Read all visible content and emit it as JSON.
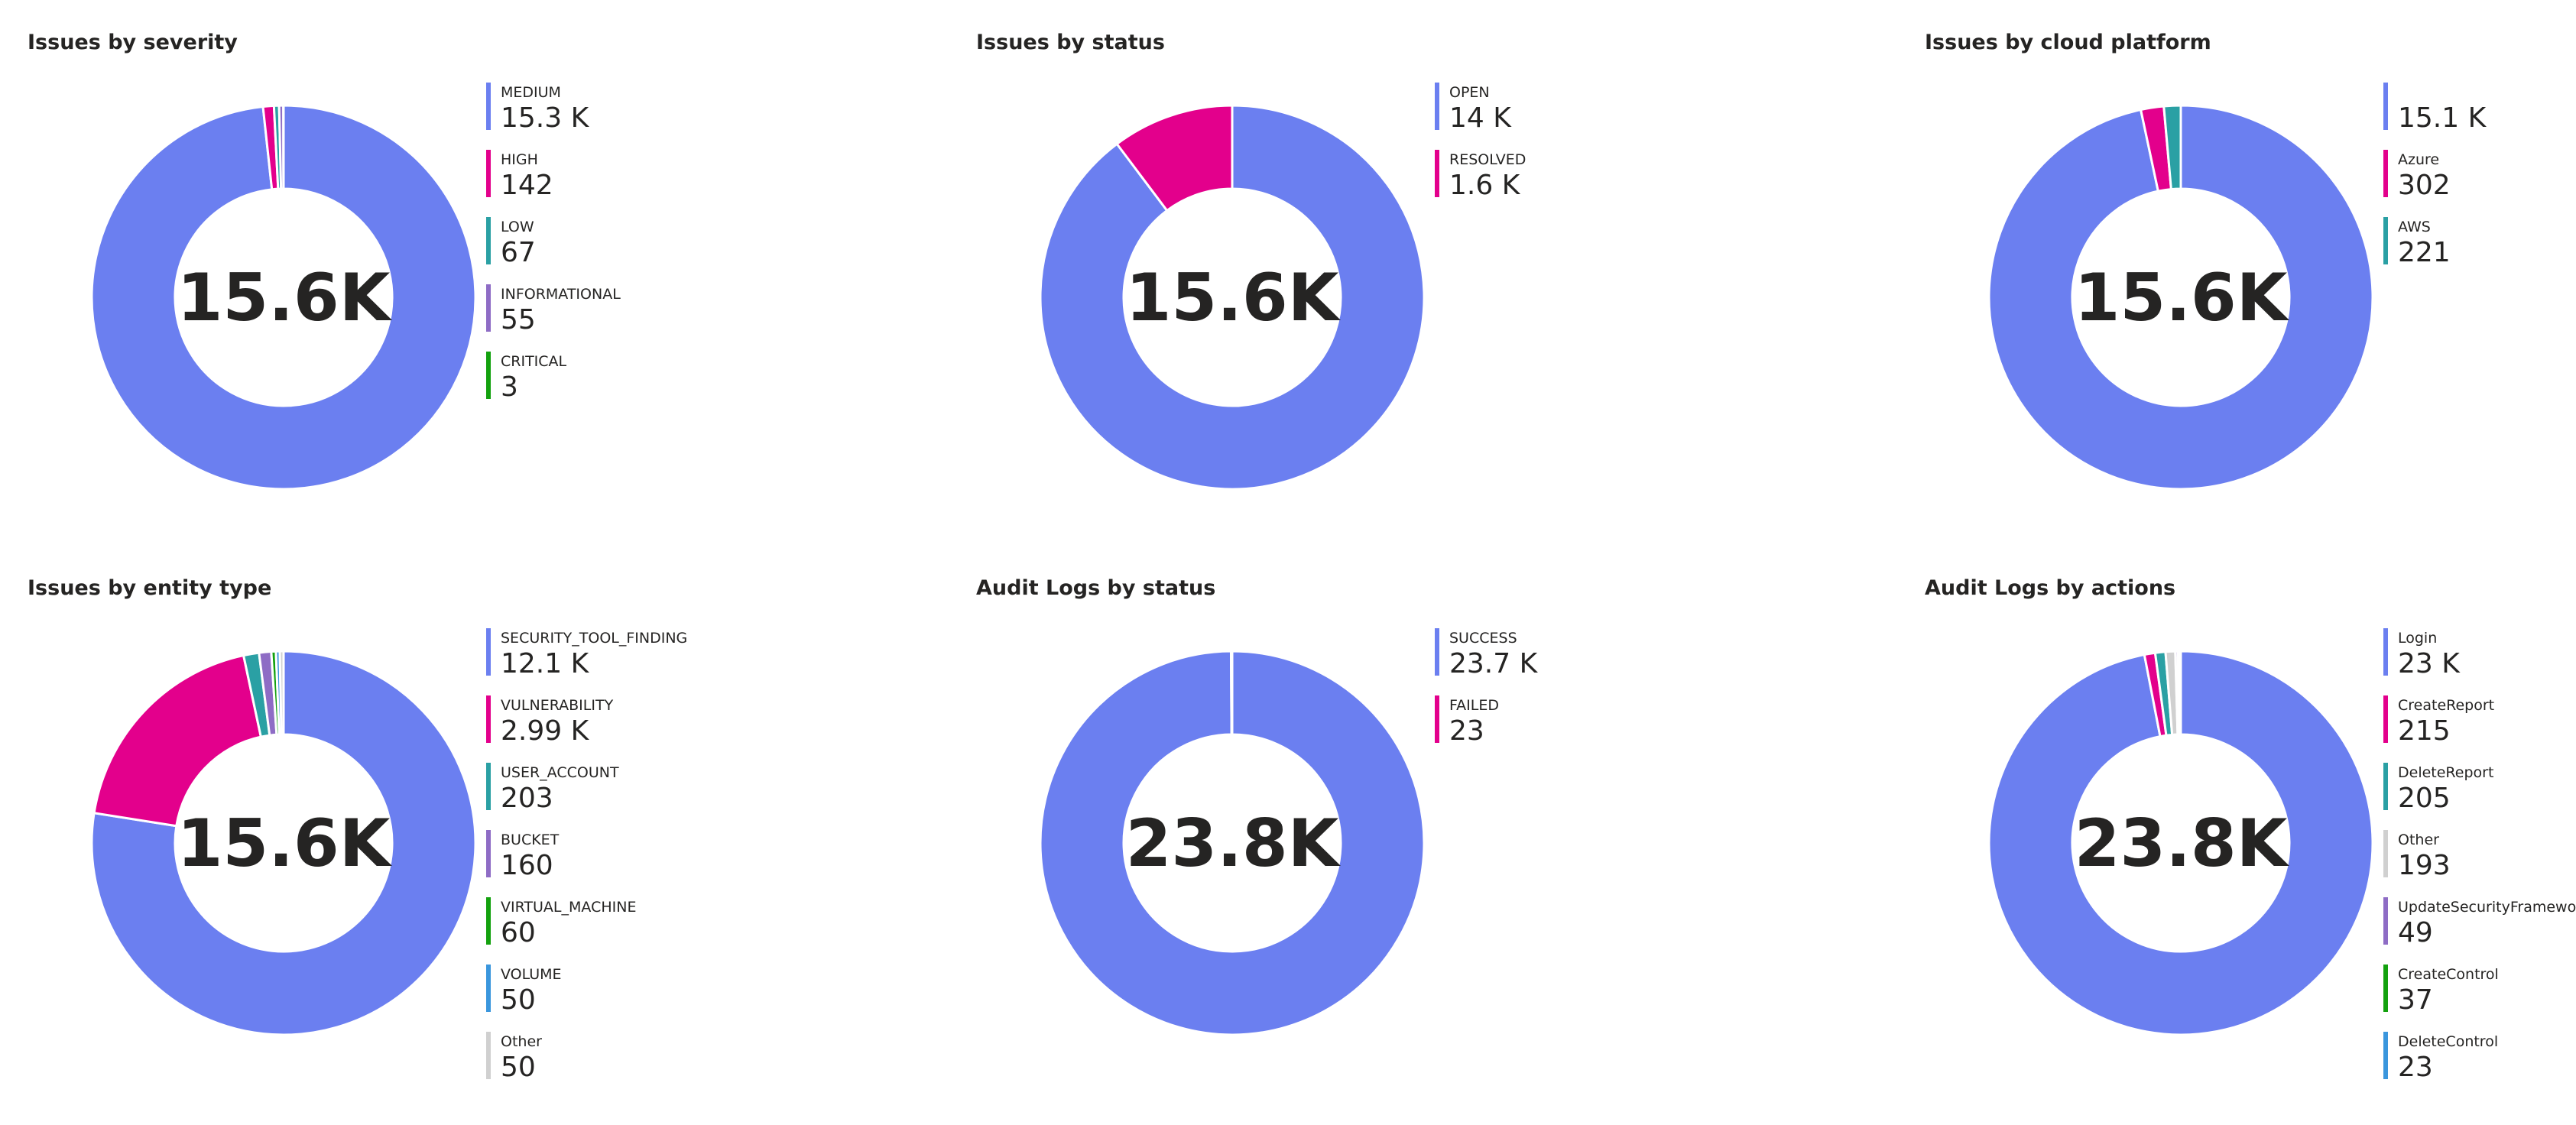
{
  "chart_data": [
    {
      "type": "donut",
      "title": "Issues by severity",
      "center_label": "15.6K",
      "categories": [
        "MEDIUM",
        "HIGH",
        "LOW",
        "INFORMATIONAL",
        "CRITICAL"
      ],
      "values": [
        15300,
        142,
        67,
        55,
        3
      ],
      "value_labels": [
        "15.3 K",
        "142",
        "67",
        "55",
        "3"
      ],
      "colors": [
        "#6b7ff0",
        "#e3008c",
        "#2aa0a4",
        "#8e6cc5",
        "#13a10e"
      ]
    },
    {
      "type": "donut",
      "title": "Issues by status",
      "center_label": "15.6K",
      "categories": [
        "OPEN",
        "RESOLVED"
      ],
      "values": [
        14000,
        1600
      ],
      "value_labels": [
        "14 K",
        "1.6 K"
      ],
      "colors": [
        "#6b7ff0",
        "#e3008c"
      ]
    },
    {
      "type": "donut",
      "title": "Issues by cloud platform",
      "center_label": "15.6K",
      "categories": [
        null,
        "Azure",
        "AWS"
      ],
      "values": [
        15100,
        302,
        221
      ],
      "value_labels": [
        "15.1 K",
        "302",
        "221"
      ],
      "colors": [
        "#6b7ff0",
        "#e3008c",
        "#2aa0a4"
      ]
    },
    {
      "type": "donut",
      "title": "Issues by entity type",
      "center_label": "15.6K",
      "categories": [
        "SECURITY_TOOL_FINDING",
        "VULNERABILITY",
        "USER_ACCOUNT",
        "BUCKET",
        "VIRTUAL_MACHINE",
        "VOLUME",
        "Other"
      ],
      "values": [
        12100,
        2990,
        203,
        160,
        60,
        50,
        50
      ],
      "value_labels": [
        "12.1 K",
        "2.99 K",
        "203",
        "160",
        "60",
        "50",
        "50"
      ],
      "colors": [
        "#6b7ff0",
        "#e3008c",
        "#2aa0a4",
        "#8e6cc5",
        "#13a10e",
        "#3a96dd",
        "#d0d0d0"
      ]
    },
    {
      "type": "donut",
      "title": "Audit Logs by status",
      "center_label": "23.8K",
      "categories": [
        "SUCCESS",
        "FAILED"
      ],
      "values": [
        23700,
        23
      ],
      "value_labels": [
        "23.7 K",
        "23"
      ],
      "colors": [
        "#6b7ff0",
        "#e3008c"
      ]
    },
    {
      "type": "donut",
      "title": "Audit Logs by actions",
      "center_label": "23.8K",
      "categories": [
        "Login",
        "CreateReport",
        "DeleteReport",
        "Other",
        "UpdateSecurityFramework",
        "CreateControl",
        "DeleteControl"
      ],
      "values": [
        23000,
        215,
        205,
        193,
        49,
        37,
        23
      ],
      "value_labels": [
        "23 K",
        "215",
        "205",
        "193",
        "49",
        "37",
        "23"
      ],
      "colors": [
        "#6b7ff0",
        "#e3008c",
        "#2aa0a4",
        "#d0d0d0",
        "#8e6cc5",
        "#13a10e",
        "#3a96dd"
      ]
    }
  ]
}
